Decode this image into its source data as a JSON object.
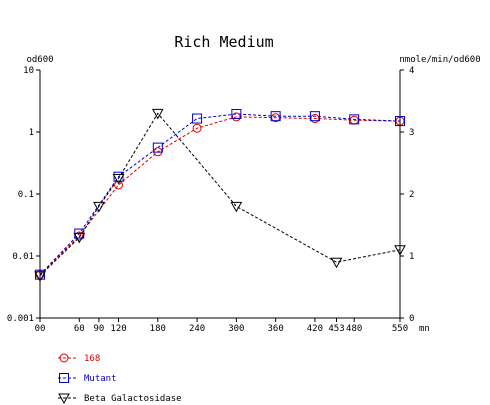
{
  "chart_data": {
    "type": "line",
    "title": "Rich Medium",
    "y_left_label": "od600",
    "y_right_label": "nmole/min/od600",
    "x_unit": "mn",
    "x_range": [
      0,
      550
    ],
    "y_left_range": [
      0.001,
      10
    ],
    "y_left_scale": "log",
    "y_right_range": [
      0,
      4
    ],
    "x_ticks": [
      {
        "value": 0,
        "label": "00"
      },
      {
        "value": 60,
        "label": "60"
      },
      {
        "value": 90,
        "label": "90"
      },
      {
        "value": 120,
        "label": "120"
      },
      {
        "value": 180,
        "label": "180"
      },
      {
        "value": 240,
        "label": "240"
      },
      {
        "value": 300,
        "label": "300"
      },
      {
        "value": 360,
        "label": "360"
      },
      {
        "value": 420,
        "label": "420"
      },
      {
        "value": 453,
        "label": "453"
      },
      {
        "value": 480,
        "label": "480"
      },
      {
        "value": 550,
        "label": "550"
      }
    ],
    "y_left_ticks": [
      {
        "value": 10,
        "label": "10"
      },
      {
        "value": 1,
        "label": "1"
      },
      {
        "value": 0.1,
        "label": "0.1"
      },
      {
        "value": 0.01,
        "label": "0.01"
      },
      {
        "value": 0.001,
        "label": "0.001"
      }
    ],
    "y_right_ticks": [
      {
        "value": 4,
        "label": "4"
      },
      {
        "value": 3,
        "label": "3"
      },
      {
        "value": 2,
        "label": "2"
      },
      {
        "value": 1,
        "label": "1"
      },
      {
        "value": 0,
        "label": "0"
      }
    ],
    "legend_position": "bottom-left",
    "series": [
      {
        "name": "168",
        "color": "#dd0000",
        "marker": "circle",
        "axis": "left",
        "x": [
          0,
          60,
          120,
          180,
          240,
          300,
          360,
          420,
          480,
          550
        ],
        "y": [
          0.005,
          0.021,
          0.14,
          0.48,
          1.15,
          1.75,
          1.7,
          1.65,
          1.55,
          1.5
        ]
      },
      {
        "name": "Mutant",
        "color": "#0000cc",
        "marker": "square",
        "axis": "left",
        "x": [
          0,
          60,
          120,
          180,
          240,
          300,
          360,
          420,
          480,
          550
        ],
        "y": [
          0.005,
          0.023,
          0.19,
          0.56,
          1.65,
          1.95,
          1.8,
          1.8,
          1.6,
          1.5
        ]
      },
      {
        "name": "Beta Galactosidase",
        "color": "#000000",
        "marker": "triangle-down",
        "axis": "right",
        "x": [
          0,
          60,
          90,
          120,
          180,
          300,
          453,
          550
        ],
        "y": [
          0.68,
          1.3,
          1.8,
          2.25,
          3.3,
          1.8,
          0.9,
          1.1
        ]
      }
    ]
  }
}
